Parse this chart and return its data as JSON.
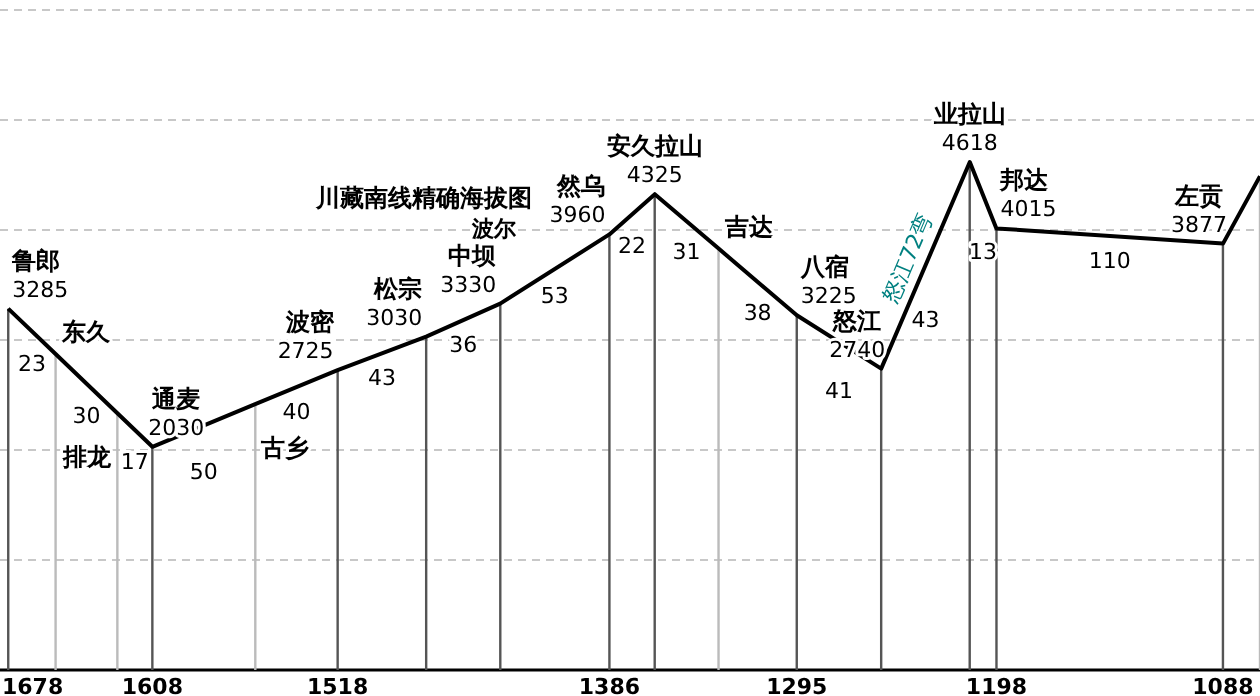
{
  "chart_data": {
    "type": "line",
    "title": "川藏南线精确海拔图",
    "subtitle": "波尔",
    "x": [
      1678,
      1655,
      1625,
      1608,
      1558,
      1518,
      1475,
      1439,
      1386,
      1364,
      1333,
      1295,
      1254,
      1211,
      1198,
      1088,
      1070
    ],
    "series": [
      {
        "color": "#000000",
        "values": [
          3285,
          2873,
          2335,
          2030,
          2416,
          2725,
          3030,
          3330,
          3960,
          4325,
          3831,
          3225,
          2740,
          4618,
          4015,
          3877,
          4490
        ],
        "value_labels": [
          "3285",
          null,
          null,
          "2030",
          null,
          "2725",
          "3030",
          "3330",
          "3960",
          "4325",
          null,
          "3225",
          "2740",
          "4618",
          "4015",
          "3877",
          null
        ]
      }
    ],
    "xlim": [
      1682,
      1070
    ],
    "xticks": [
      1678,
      1608,
      1518,
      1386,
      1295,
      1198,
      1088
    ],
    "ylim": [
      0,
      6000
    ],
    "yticks": [
      {
        "value": 1000,
        "label": null
      },
      {
        "value": 2000,
        "label": null
      },
      {
        "value": 3000,
        "label": null
      },
      {
        "value": 4000,
        "label": null
      },
      {
        "value": 5000,
        "label": null
      },
      {
        "value": 6000,
        "label": null
      }
    ],
    "grid": "y",
    "tick_labels": "x",
    "annotations": [
      {
        "text": "鲁郎",
        "x": 1678,
        "y": 3285
      },
      {
        "text": "东久",
        "x": 1655,
        "y": 2873
      },
      {
        "text": "排龙",
        "x": 1625,
        "y": 2335
      },
      {
        "text": "通麦",
        "x": 1608,
        "y": 2030
      },
      {
        "text": "古乡",
        "x": 1558,
        "y": 2416
      },
      {
        "text": "波密",
        "x": 1518,
        "y": 2725
      },
      {
        "text": "松宗",
        "x": 1475,
        "y": 3030
      },
      {
        "text": "中坝",
        "x": 1439,
        "y": 3330
      },
      {
        "text": "然乌",
        "x": 1386,
        "y": 3960
      },
      {
        "text": "安久拉山",
        "x": 1364,
        "y": 4325
      },
      {
        "text": "吉达",
        "x": 1333,
        "y": 3831
      },
      {
        "text": "八宿",
        "x": 1295,
        "y": 3225
      },
      {
        "text": "怒江",
        "x": 1254,
        "y": 2740
      },
      {
        "text": "业拉山",
        "x": 1211,
        "y": 4618
      },
      {
        "text": "邦达",
        "x": 1198,
        "y": 4015
      },
      {
        "text": "左贡",
        "x": 1088,
        "y": 3877
      },
      {
        "text": "23",
        "x": 1666.5,
        "y": 3079
      },
      {
        "text": "30",
        "x": 1640,
        "y": 2604
      },
      {
        "text": "17",
        "x": 1616.5,
        "y": 2182.5
      },
      {
        "text": "50",
        "x": 1583,
        "y": 2223
      },
      {
        "text": "40",
        "x": 1538,
        "y": 2570.5
      },
      {
        "text": "43",
        "x": 1496.5,
        "y": 2877.5
      },
      {
        "text": "36",
        "x": 1457,
        "y": 3180
      },
      {
        "text": "53",
        "x": 1412.5,
        "y": 3645
      },
      {
        "text": "22",
        "x": 1375,
        "y": 4142.5
      },
      {
        "text": "31",
        "x": 1348.5,
        "y": 4078
      },
      {
        "text": "38",
        "x": 1314,
        "y": 3528
      },
      {
        "text": "41",
        "x": 1274.5,
        "y": 2982.5
      },
      {
        "text": "43",
        "x": 1232.5,
        "y": 3679
      },
      {
        "text": "怒江72弯",
        "x": 1232.5,
        "y": 3679
      },
      {
        "text": "13",
        "x": 1204.5,
        "y": 4316.5
      },
      {
        "text": "110",
        "x": 1143,
        "y": 3946
      }
    ]
  }
}
